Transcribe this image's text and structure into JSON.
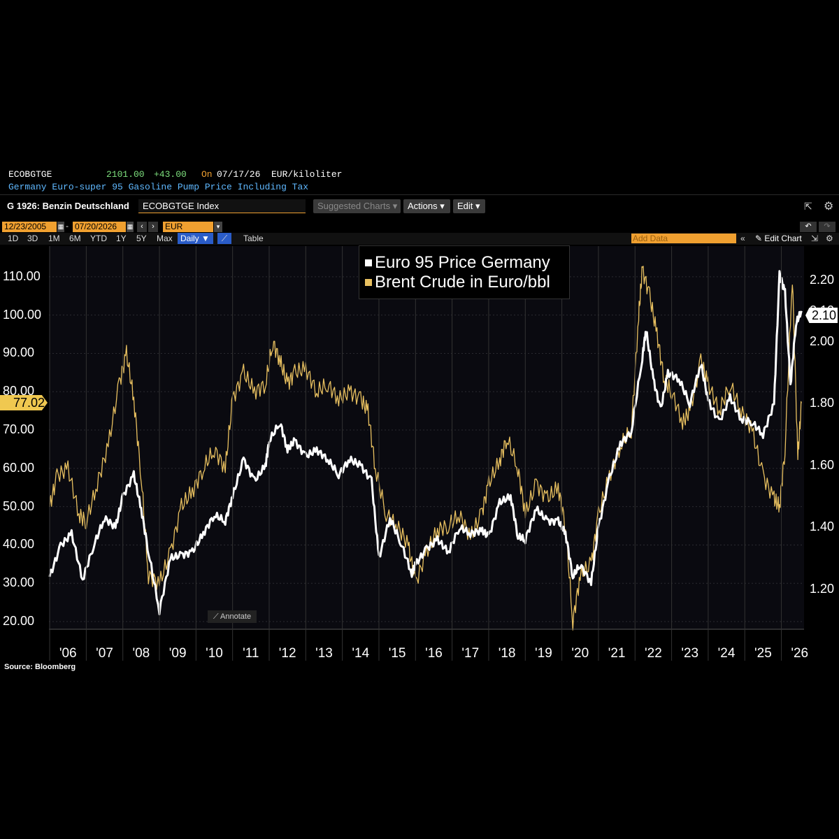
{
  "header": {
    "ticker": "ECOBGTGE",
    "last_price": "2101.00",
    "change": "+43.00",
    "on_label": "On",
    "date": "07/17/26",
    "unit": "EUR/kiloliter",
    "description": "Germany Euro-super 95 Gasoline Pump Price Including Tax"
  },
  "toolbar": {
    "chart_name": "G 1926: Benzin Deutschland",
    "security_input": "ECOBGTGE Index",
    "suggested_charts": "Suggested Charts",
    "actions": "Actions",
    "edit": "Edit"
  },
  "range": {
    "start_date": "12/23/2005",
    "dash": "-",
    "end_date": "07/20/2026",
    "currency": "EUR",
    "periods": [
      "1D",
      "3D",
      "1M",
      "6M",
      "YTD",
      "1Y",
      "5Y",
      "Max"
    ],
    "frequency": "Daily ▼",
    "table": "Table",
    "add_data_placeholder": "Add Data",
    "edit_chart": "Edit Chart"
  },
  "annotate": "Annotate",
  "source": "Source: Bloomberg",
  "colors": {
    "white_series": "#ffffff",
    "gold_series": "#e8c060",
    "last_label_bg": "#f0c850",
    "background": "#0a0a10"
  },
  "chart_data": {
    "type": "line",
    "title": "",
    "legend_placement": "top-center",
    "x_ticks": [
      "'06",
      "'07",
      "'08",
      "'09",
      "'10",
      "'11",
      "'12",
      "'13",
      "'14",
      "'15",
      "'16",
      "'17",
      "'18",
      "'19",
      "'20",
      "'21",
      "'22",
      "'23",
      "'24",
      "'25",
      "'26"
    ],
    "left_axis": {
      "ticks": [
        "110.00",
        "100.00",
        "90.00",
        "80.00",
        "70.00",
        "60.00",
        "50.00",
        "40.00",
        "30.00",
        "20.00"
      ],
      "ylim": [
        18,
        118
      ],
      "last_value_label": "77.02"
    },
    "right_axis": {
      "ticks": [
        "2.20",
        "2.10",
        "2.00",
        "1.80",
        "1.60",
        "1.40",
        "1.20"
      ],
      "ylim": [
        1.07,
        2.31
      ],
      "last_value_label": "2.10"
    },
    "series": [
      {
        "name": "Euro 95 Price Germany",
        "axis": "right",
        "x": [
          2006.0,
          2006.3,
          2006.6,
          2006.9,
          2007.2,
          2007.5,
          2007.8,
          2008.0,
          2008.3,
          2008.5,
          2008.7,
          2009.0,
          2009.3,
          2009.6,
          2009.9,
          2010.2,
          2010.5,
          2010.8,
          2011.0,
          2011.3,
          2011.6,
          2011.9,
          2012.0,
          2012.3,
          2012.5,
          2012.7,
          2013.0,
          2013.3,
          2013.6,
          2013.9,
          2014.2,
          2014.5,
          2014.8,
          2015.0,
          2015.3,
          2015.6,
          2015.9,
          2016.0,
          2016.3,
          2016.6,
          2016.9,
          2017.2,
          2017.5,
          2017.8,
          2018.0,
          2018.3,
          2018.6,
          2018.8,
          2019.0,
          2019.3,
          2019.6,
          2019.9,
          2020.1,
          2020.3,
          2020.5,
          2020.8,
          2021.0,
          2021.3,
          2021.6,
          2021.9,
          2022.2,
          2022.3,
          2022.5,
          2022.7,
          2022.9,
          2023.2,
          2023.5,
          2023.8,
          2024.0,
          2024.3,
          2024.6,
          2024.9,
          2025.2,
          2025.5,
          2025.8,
          2025.95,
          2026.1,
          2026.25,
          2026.4,
          2026.55
        ],
        "values": [
          1.24,
          1.34,
          1.38,
          1.23,
          1.34,
          1.43,
          1.4,
          1.5,
          1.57,
          1.46,
          1.32,
          1.13,
          1.3,
          1.31,
          1.32,
          1.38,
          1.44,
          1.42,
          1.5,
          1.62,
          1.55,
          1.6,
          1.68,
          1.74,
          1.65,
          1.68,
          1.63,
          1.65,
          1.62,
          1.57,
          1.62,
          1.6,
          1.55,
          1.3,
          1.43,
          1.35,
          1.25,
          1.28,
          1.33,
          1.36,
          1.32,
          1.4,
          1.38,
          1.39,
          1.37,
          1.48,
          1.5,
          1.37,
          1.36,
          1.46,
          1.42,
          1.42,
          1.38,
          1.24,
          1.28,
          1.22,
          1.4,
          1.56,
          1.67,
          1.71,
          1.95,
          2.04,
          1.88,
          1.78,
          1.9,
          1.88,
          1.8,
          1.93,
          1.81,
          1.74,
          1.82,
          1.75,
          1.74,
          1.7,
          1.8,
          2.22,
          2.16,
          1.86,
          2.06,
          2.1
        ]
      },
      {
        "name": "Brent Crude in Euro/bbl",
        "axis": "left",
        "x": [
          2006.0,
          2006.2,
          2006.5,
          2006.8,
          2007.0,
          2007.3,
          2007.6,
          2007.9,
          2008.1,
          2008.3,
          2008.5,
          2008.7,
          2009.0,
          2009.3,
          2009.6,
          2009.9,
          2010.2,
          2010.5,
          2010.8,
          2011.0,
          2011.3,
          2011.6,
          2011.9,
          2012.1,
          2012.3,
          2012.5,
          2012.7,
          2013.0,
          2013.3,
          2013.6,
          2013.9,
          2014.2,
          2014.5,
          2014.7,
          2014.9,
          2015.2,
          2015.5,
          2015.8,
          2016.0,
          2016.3,
          2016.6,
          2016.9,
          2017.2,
          2017.5,
          2017.8,
          2018.0,
          2018.3,
          2018.5,
          2018.8,
          2019.0,
          2019.3,
          2019.6,
          2019.9,
          2020.1,
          2020.3,
          2020.5,
          2020.8,
          2021.0,
          2021.3,
          2021.6,
          2021.9,
          2022.1,
          2022.2,
          2022.4,
          2022.6,
          2022.8,
          2023.0,
          2023.3,
          2023.5,
          2023.8,
          2024.0,
          2024.3,
          2024.6,
          2024.9,
          2025.2,
          2025.5,
          2025.8,
          2025.95,
          2026.1,
          2026.3,
          2026.45,
          2026.55
        ],
        "values": [
          50,
          58,
          60,
          48,
          46,
          56,
          66,
          82,
          90,
          78,
          58,
          32,
          30,
          38,
          50,
          54,
          60,
          65,
          60,
          78,
          85,
          80,
          82,
          93,
          88,
          82,
          85,
          86,
          80,
          82,
          78,
          80,
          78,
          75,
          60,
          48,
          45,
          40,
          30,
          38,
          44,
          45,
          48,
          42,
          48,
          56,
          62,
          68,
          60,
          48,
          56,
          52,
          55,
          45,
          20,
          32,
          35,
          48,
          58,
          66,
          70,
          100,
          112,
          105,
          95,
          83,
          80,
          72,
          75,
          88,
          82,
          75,
          82,
          75,
          70,
          58,
          52,
          50,
          65,
          110,
          63,
          77.02
        ]
      }
    ]
  }
}
